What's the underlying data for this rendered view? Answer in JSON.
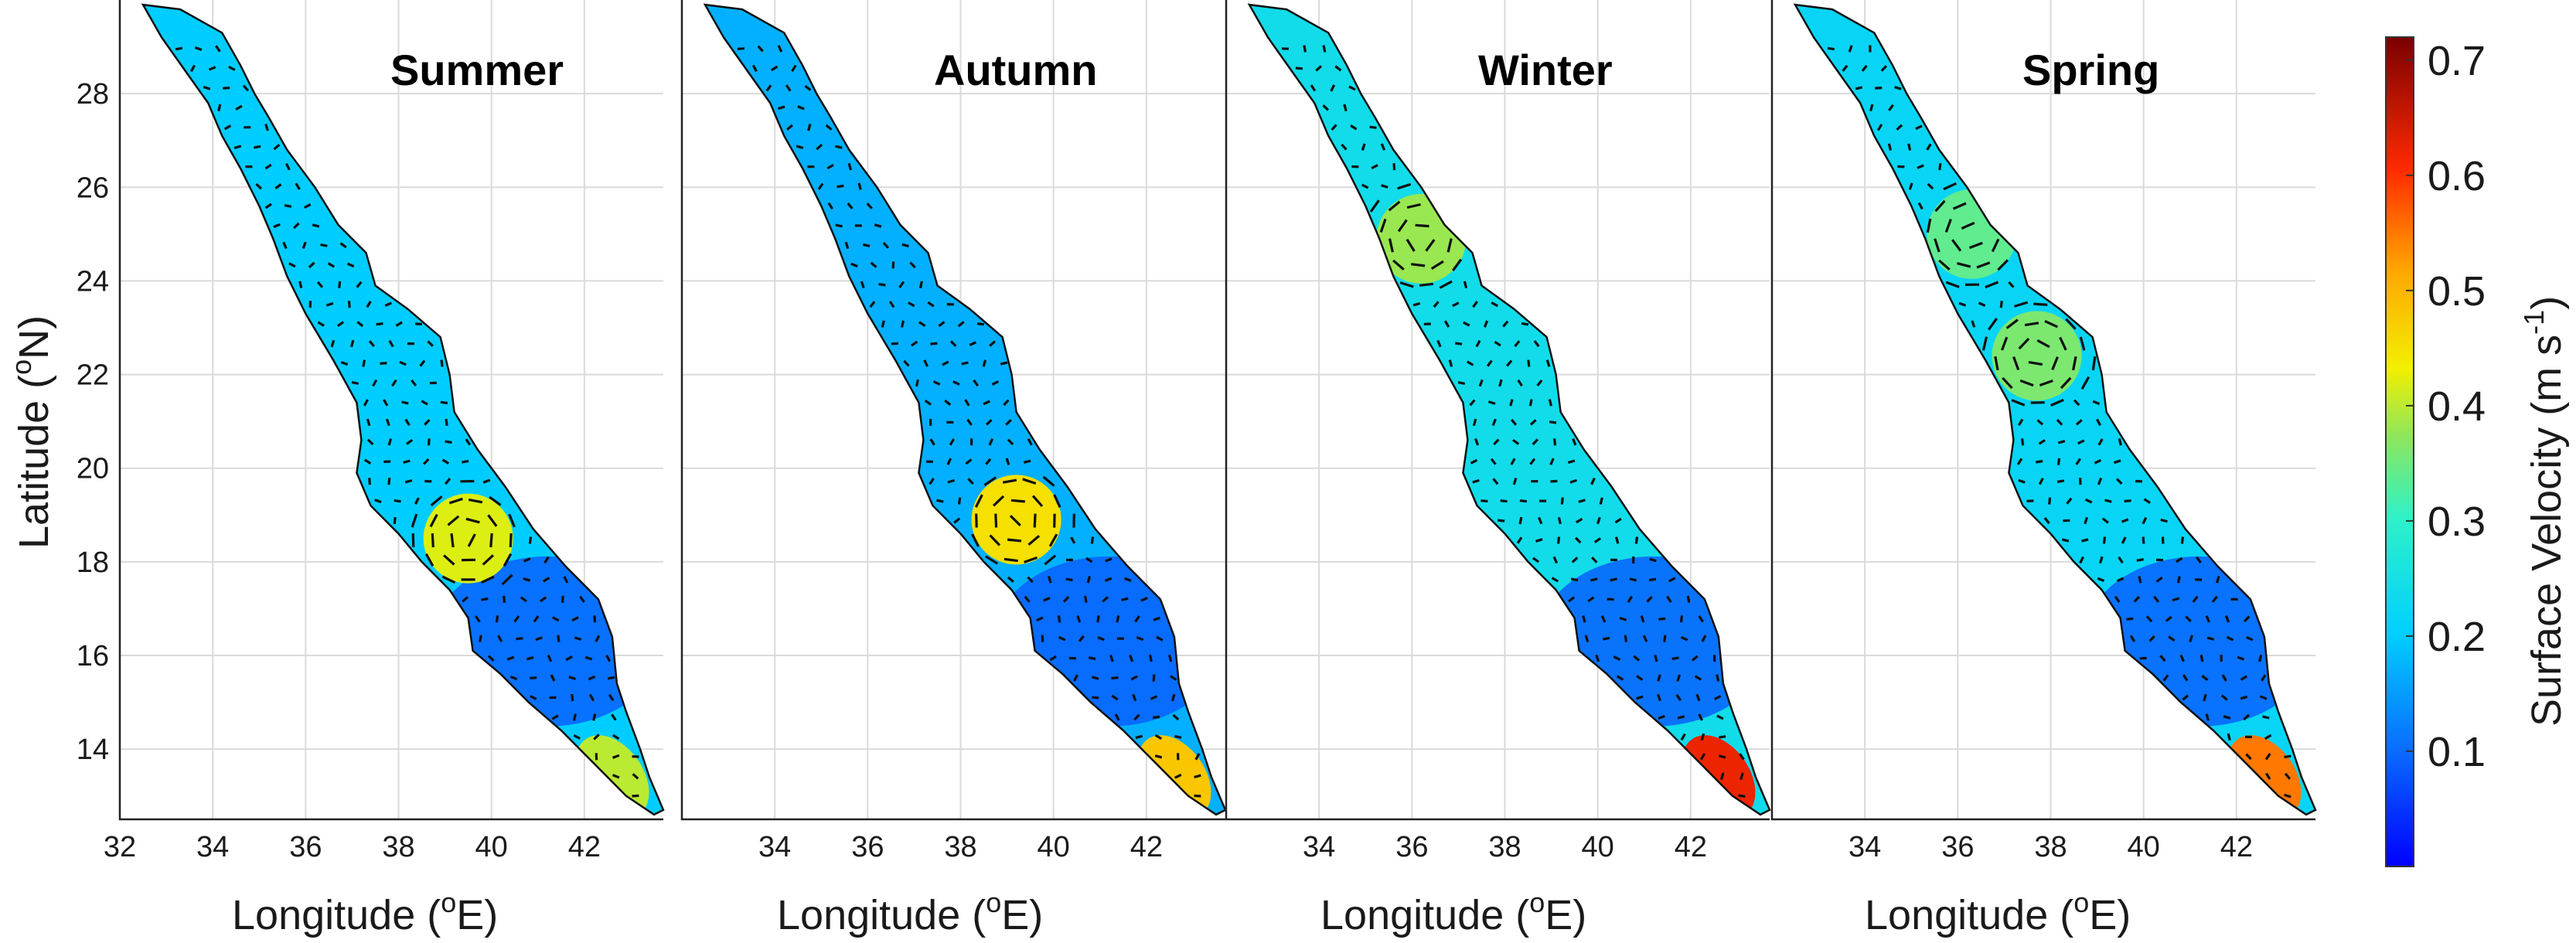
{
  "figure": {
    "panels": [
      {
        "title": "Summer",
        "xlabel": "Longitude (",
        "xlabel_sup": "o",
        "xlabel_end": "E)"
      },
      {
        "title": "Autumn",
        "xlabel": "Longitude (",
        "xlabel_sup": "o",
        "xlabel_end": "E)"
      },
      {
        "title": "Winter",
        "xlabel": "Longitude (",
        "xlabel_sup": "o",
        "xlabel_end": "E)"
      },
      {
        "title": "Spring",
        "xlabel": "Longitude (",
        "xlabel_sup": "o",
        "xlabel_end": "E)"
      }
    ],
    "ylabel": {
      "text": "Latitude (",
      "sup": "o",
      "end": "N)"
    },
    "colorbar_label": {
      "text": "Surface Velocity (m s",
      "sup": "-1",
      "end": ")"
    },
    "colormap": "jet"
  },
  "chart_data": {
    "type": "heatmap",
    "subtype": "geographic map with velocity vectors (Red Sea)",
    "panels": [
      "Summer",
      "Autumn",
      "Winter",
      "Spring"
    ],
    "x_ticks": [
      32,
      34,
      36,
      38,
      40,
      42
    ],
    "y_ticks": [
      14,
      16,
      18,
      20,
      22,
      24,
      26,
      28
    ],
    "xlim": [
      32,
      43.7
    ],
    "ylim": [
      12.5,
      30
    ],
    "colorbar": {
      "ticks": [
        0.1,
        0.2,
        0.3,
        0.4,
        0.5,
        0.6,
        0.7
      ],
      "range": [
        0.0,
        0.72
      ]
    },
    "grid": true,
    "eddies": [
      {
        "panel": "Summer",
        "lon": 39.5,
        "lat": 18.5,
        "speed": 0.42
      },
      {
        "panel": "Autumn",
        "lon": 39.2,
        "lat": 18.9,
        "speed": 0.45
      },
      {
        "panel": "Winter",
        "lon": 36.2,
        "lat": 24.9,
        "speed": 0.38
      },
      {
        "panel": "Spring",
        "lon": 36.3,
        "lat": 25.0,
        "speed": 0.34
      },
      {
        "panel": "Spring",
        "lon": 37.7,
        "lat": 22.4,
        "speed": 0.36
      }
    ]
  }
}
